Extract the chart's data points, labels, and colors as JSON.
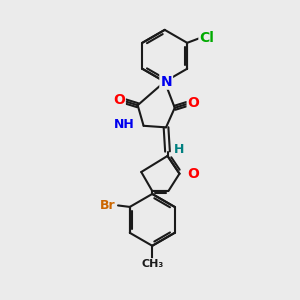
{
  "background_color": "#ebebeb",
  "bond_color": "#1a1a1a",
  "bond_width": 1.5,
  "atom_colors": {
    "N": "#0000ee",
    "O": "#ff0000",
    "Cl": "#00aa00",
    "Br": "#cc6600",
    "H": "#008080",
    "C": "#1a1a1a"
  },
  "figsize": [
    3.0,
    3.0
  ],
  "dpi": 100
}
